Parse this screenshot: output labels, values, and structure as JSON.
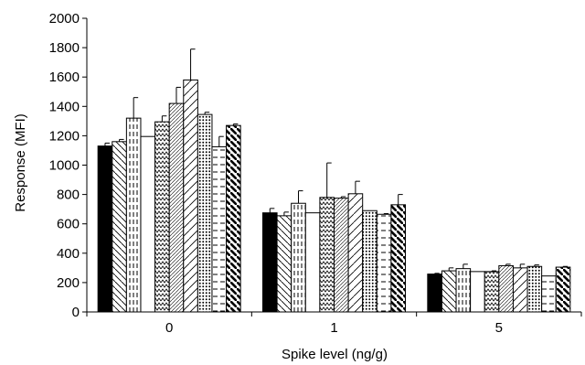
{
  "chart_data": {
    "type": "bar",
    "title": "",
    "xlabel": "Spike level (ng/g)",
    "ylabel": "Response (MFI)",
    "categories": [
      "0",
      "1",
      "5"
    ],
    "ylim": [
      0,
      2000
    ],
    "yticks": [
      "0",
      "200",
      "400",
      "600",
      "800",
      "1000",
      "1200",
      "1400",
      "1600",
      "1800",
      "2000"
    ],
    "legend": "none",
    "grid": false,
    "error_bars": true,
    "series": [
      {
        "pattern": "solid-black",
        "values": [
          1130,
          675,
          258
        ],
        "errors": [
          20,
          30,
          5
        ]
      },
      {
        "pattern": "backslash-lines",
        "values": [
          1160,
          655,
          280
        ],
        "errors": [
          15,
          25,
          20
        ]
      },
      {
        "pattern": "dashed-vertical",
        "values": [
          1320,
          740,
          295
        ],
        "errors": [
          140,
          85,
          30
        ]
      },
      {
        "pattern": "white",
        "values": [
          1195,
          675,
          275
        ],
        "errors": [
          0,
          0,
          0
        ]
      },
      {
        "pattern": "zigzag",
        "values": [
          1295,
          780,
          275
        ],
        "errors": [
          40,
          235,
          5
        ]
      },
      {
        "pattern": "fine-diagonal",
        "values": [
          1420,
          775,
          315
        ],
        "errors": [
          110,
          10,
          10
        ]
      },
      {
        "pattern": "sparse-diagonal",
        "values": [
          1580,
          805,
          300
        ],
        "errors": [
          210,
          85,
          25
        ]
      },
      {
        "pattern": "dots",
        "values": [
          1345,
          690,
          310
        ],
        "errors": [
          15,
          0,
          10
        ]
      },
      {
        "pattern": "horizontal-dashes",
        "values": [
          1125,
          665,
          245
        ],
        "errors": [
          70,
          5,
          0
        ]
      },
      {
        "pattern": "thick-backslash",
        "values": [
          1270,
          730,
          305
        ],
        "errors": [
          10,
          70,
          5
        ]
      }
    ]
  }
}
